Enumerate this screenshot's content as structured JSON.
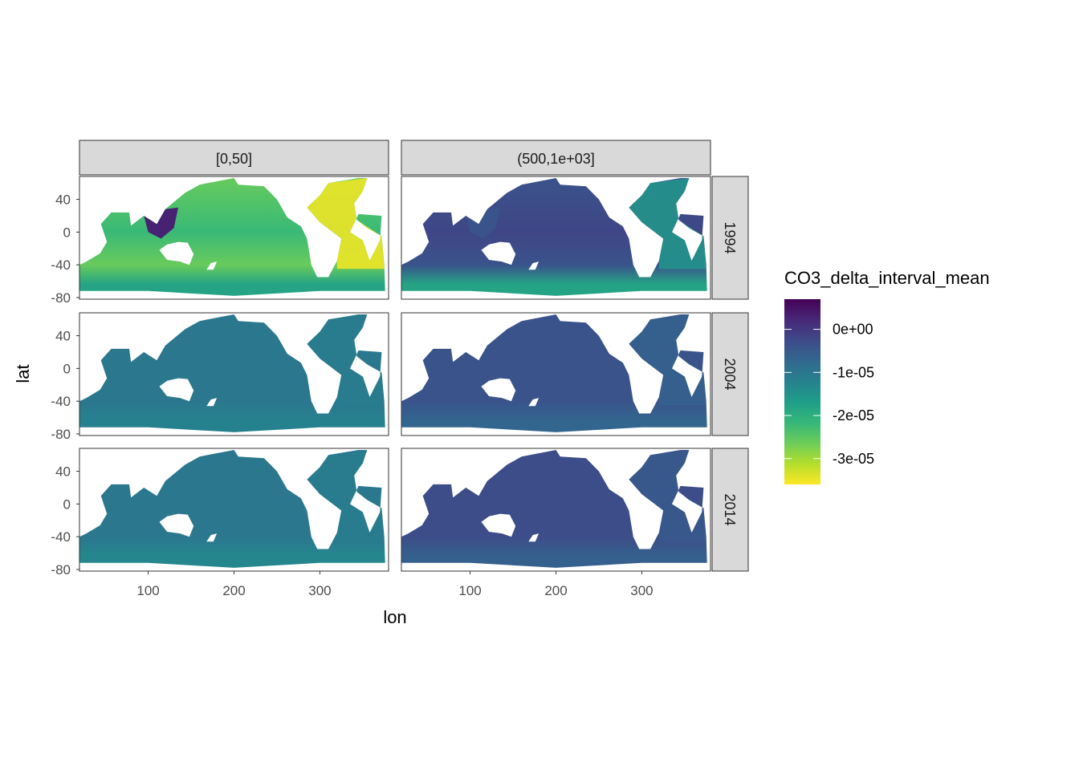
{
  "chart_data": {
    "type": "heatmap",
    "title": "",
    "xlabel": "lon",
    "ylabel": "lat",
    "xlim": [
      20,
      380
    ],
    "ylim": [
      -82,
      68
    ],
    "x_ticks": [
      100,
      200,
      300
    ],
    "x_tick_labels": [
      "100",
      "200",
      "300"
    ],
    "y_ticks": [
      40,
      0,
      -40,
      -80
    ],
    "y_tick_labels": [
      "40",
      "0",
      "-40",
      "-80"
    ],
    "grid": false,
    "legend_placement": "right",
    "facet_columns": [
      "[0,50]",
      "(500,1e+03]"
    ],
    "facet_rows": [
      "1994",
      "2004",
      "2014"
    ],
    "colorbar": {
      "title": "CO3_delta_interval_mean",
      "min": -3.6e-05,
      "max": 7e-06,
      "ticks": [
        0,
        -1e-05,
        -2e-05,
        -3e-05
      ],
      "tick_labels": [
        "0e+00",
        "-1e-05",
        "-2e-05",
        "-3e-05"
      ],
      "palette": [
        "#FDE725",
        "#B4DE2C",
        "#6DCD59",
        "#35B779",
        "#1F9E89",
        "#26828E",
        "#31688E",
        "#3E4A89",
        "#482878",
        "#440154"
      ]
    },
    "panels": [
      {
        "column": "[0,50]",
        "row": "1994",
        "mean_value": -2.6e-05,
        "north_atlantic": -3.5e-05,
        "southern_ocean": -1.8e-05,
        "tropical_band": -2.2e-05,
        "marginal_seas": 3e-06
      },
      {
        "column": "(500,1e+03]",
        "row": "1994",
        "mean_value": -4e-06,
        "north_atlantic": -1.5e-05,
        "southern_ocean": -1.8e-05,
        "tropical_band": -2e-06,
        "marginal_seas": -4e-06
      },
      {
        "column": "[0,50]",
        "row": "2004",
        "mean_value": -1e-05,
        "north_atlantic": -1.1e-05,
        "southern_ocean": -1.2e-05,
        "tropical_band": -1e-05,
        "marginal_seas": -1e-05
      },
      {
        "column": "(500,1e+03]",
        "row": "2004",
        "mean_value": -4e-06,
        "north_atlantic": -6e-06,
        "southern_ocean": -7e-06,
        "tropical_band": -4e-06,
        "marginal_seas": -4e-06
      },
      {
        "column": "[0,50]",
        "row": "2014",
        "mean_value": -1e-05,
        "north_atlantic": -1.1e-05,
        "southern_ocean": -1.3e-05,
        "tropical_band": -1e-05,
        "marginal_seas": -1e-05
      },
      {
        "column": "(500,1e+03]",
        "row": "2014",
        "mean_value": -3e-06,
        "north_atlantic": -5e-06,
        "southern_ocean": -6e-06,
        "tropical_band": -3e-06,
        "marginal_seas": -3e-06
      }
    ]
  }
}
